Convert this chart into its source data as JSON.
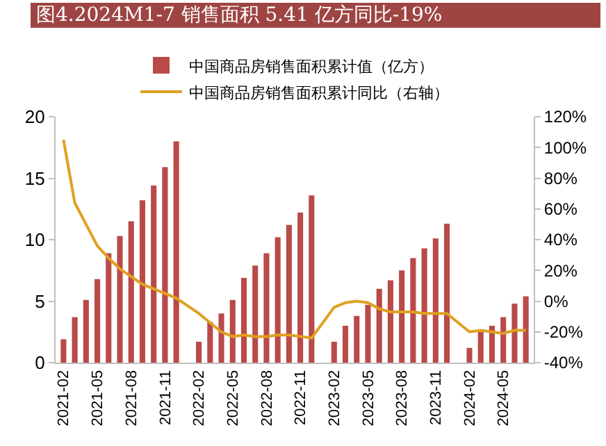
{
  "chart_data": {
    "type": "bar",
    "title": "图4.2024M1-7 销售面积 5.41 亿方同比-19%",
    "categories": [
      "2021-02",
      null,
      null,
      "2021-05",
      null,
      null,
      "2021-08",
      null,
      null,
      "2021-11",
      null,
      null,
      "2022-02",
      null,
      null,
      "2022-05",
      null,
      null,
      "2022-08",
      null,
      null,
      "2022-11",
      null,
      null,
      "2023-02",
      null,
      null,
      "2023-05",
      null,
      null,
      "2023-08",
      null,
      null,
      "2023-11",
      null,
      null,
      "2024-02",
      null,
      null,
      "2024-05",
      null,
      null
    ],
    "series": [
      {
        "name": "中国商品房销售面积累计值（亿方）",
        "color": "#b94a48",
        "values": [
          1.9,
          3.7,
          5.1,
          6.8,
          8.9,
          10.3,
          11.5,
          13.2,
          14.4,
          15.9,
          18.0,
          null,
          1.7,
          3.3,
          4.0,
          5.1,
          6.9,
          7.9,
          8.9,
          10.2,
          11.2,
          12.2,
          13.6,
          null,
          1.7,
          3.0,
          3.8,
          4.7,
          6.0,
          6.7,
          7.5,
          8.5,
          9.3,
          10.1,
          11.3,
          null,
          1.2,
          2.5,
          3.0,
          3.7,
          4.8,
          5.4
        ]
      },
      {
        "name": "中国商品房销售面积累计同比（右轴）",
        "type": "line",
        "axis": "y2",
        "color": "#e0a020",
        "values": [
          105,
          64,
          50,
          36,
          28,
          21,
          16,
          11,
          8,
          5,
          2,
          null,
          -8,
          -14,
          -20,
          -23,
          -22,
          -23,
          -23,
          -22,
          -22,
          -23,
          -24,
          null,
          -4,
          -1,
          0,
          -1,
          -5,
          -7,
          -7,
          -7,
          -8,
          -8,
          -8,
          null,
          -20,
          -19,
          -20,
          -21,
          -19,
          -19
        ]
      }
    ],
    "ylim": [
      0,
      20
    ],
    "yticks": [
      0,
      5,
      10,
      15,
      20
    ],
    "y2lim": [
      -40,
      120
    ],
    "y2ticks": [
      {
        "value": -40,
        "label": "-40%"
      },
      {
        "value": -20,
        "label": "-20%"
      },
      {
        "value": 0,
        "label": "0%"
      },
      {
        "value": 20,
        "label": "20%"
      },
      {
        "value": 40,
        "label": "40%"
      },
      {
        "value": 60,
        "label": "60%"
      },
      {
        "value": 80,
        "label": "80%"
      },
      {
        "value": 100,
        "label": "100%"
      },
      {
        "value": 120,
        "label": "120%"
      }
    ],
    "grid": false,
    "legend": "top"
  }
}
